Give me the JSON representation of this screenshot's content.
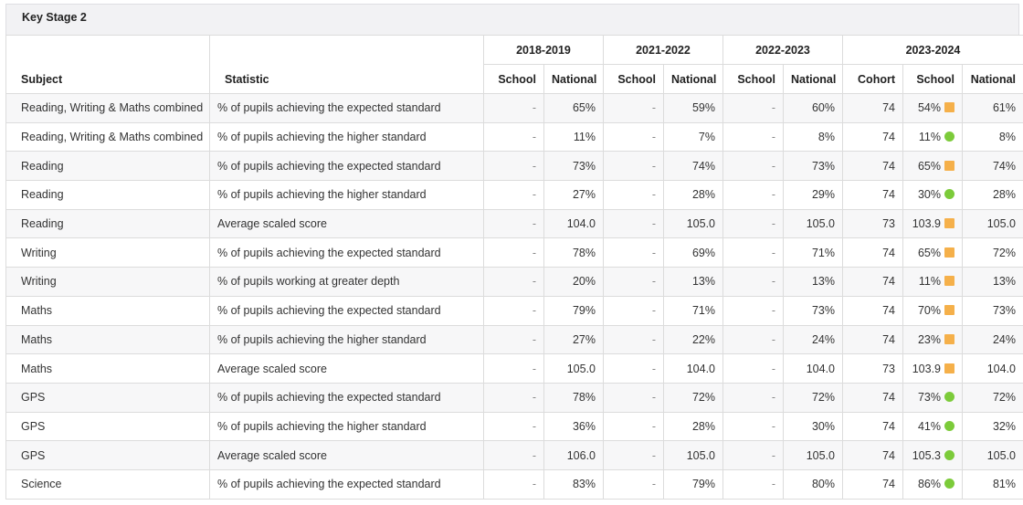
{
  "section": {
    "title": "Key Stage 2"
  },
  "header": {
    "subject": "Subject",
    "statistic": "Statistic",
    "years": [
      "2018-2019",
      "2021-2022",
      "2022-2023",
      "2023-2024"
    ],
    "school": "School",
    "national": "National",
    "cohort": "Cohort"
  },
  "indicator_colors": {
    "square": "#f5b04a",
    "circle": "#7ccb3a"
  },
  "rows": [
    {
      "subject": "Reading, Writing & Maths combined",
      "statistic": "% of pupils achieving the expected standard",
      "s19": "-",
      "n19": "65%",
      "s22": "-",
      "n22": "59%",
      "s23": "-",
      "n23": "60%",
      "cohort": "74",
      "s24": "54%",
      "indicator": "square",
      "n24": "61%"
    },
    {
      "subject": "Reading, Writing & Maths combined",
      "statistic": "% of pupils achieving the higher standard",
      "s19": "-",
      "n19": "11%",
      "s22": "-",
      "n22": "7%",
      "s23": "-",
      "n23": "8%",
      "cohort": "74",
      "s24": "11%",
      "indicator": "circle",
      "n24": "8%"
    },
    {
      "subject": "Reading",
      "statistic": "% of pupils achieving the expected standard",
      "s19": "-",
      "n19": "73%",
      "s22": "-",
      "n22": "74%",
      "s23": "-",
      "n23": "73%",
      "cohort": "74",
      "s24": "65%",
      "indicator": "square",
      "n24": "74%"
    },
    {
      "subject": "Reading",
      "statistic": "% of pupils achieving the higher standard",
      "s19": "-",
      "n19": "27%",
      "s22": "-",
      "n22": "28%",
      "s23": "-",
      "n23": "29%",
      "cohort": "74",
      "s24": "30%",
      "indicator": "circle",
      "n24": "28%"
    },
    {
      "subject": "Reading",
      "statistic": "Average scaled score",
      "s19": "-",
      "n19": "104.0",
      "s22": "-",
      "n22": "105.0",
      "s23": "-",
      "n23": "105.0",
      "cohort": "73",
      "s24": "103.9",
      "indicator": "square",
      "n24": "105.0"
    },
    {
      "subject": "Writing",
      "statistic": "% of pupils achieving the expected standard",
      "s19": "-",
      "n19": "78%",
      "s22": "-",
      "n22": "69%",
      "s23": "-",
      "n23": "71%",
      "cohort": "74",
      "s24": "65%",
      "indicator": "square",
      "n24": "72%"
    },
    {
      "subject": "Writing",
      "statistic": "% of pupils working at greater depth",
      "s19": "-",
      "n19": "20%",
      "s22": "-",
      "n22": "13%",
      "s23": "-",
      "n23": "13%",
      "cohort": "74",
      "s24": "11%",
      "indicator": "square",
      "n24": "13%"
    },
    {
      "subject": "Maths",
      "statistic": "% of pupils achieving the expected standard",
      "s19": "-",
      "n19": "79%",
      "s22": "-",
      "n22": "71%",
      "s23": "-",
      "n23": "73%",
      "cohort": "74",
      "s24": "70%",
      "indicator": "square",
      "n24": "73%"
    },
    {
      "subject": "Maths",
      "statistic": "% of pupils achieving the higher standard",
      "s19": "-",
      "n19": "27%",
      "s22": "-",
      "n22": "22%",
      "s23": "-",
      "n23": "24%",
      "cohort": "74",
      "s24": "23%",
      "indicator": "square",
      "n24": "24%"
    },
    {
      "subject": "Maths",
      "statistic": "Average scaled score",
      "s19": "-",
      "n19": "105.0",
      "s22": "-",
      "n22": "104.0",
      "s23": "-",
      "n23": "104.0",
      "cohort": "73",
      "s24": "103.9",
      "indicator": "square",
      "n24": "104.0"
    },
    {
      "subject": "GPS",
      "statistic": "% of pupils achieving the expected standard",
      "s19": "-",
      "n19": "78%",
      "s22": "-",
      "n22": "72%",
      "s23": "-",
      "n23": "72%",
      "cohort": "74",
      "s24": "73%",
      "indicator": "circle",
      "n24": "72%"
    },
    {
      "subject": "GPS",
      "statistic": "% of pupils achieving the higher standard",
      "s19": "-",
      "n19": "36%",
      "s22": "-",
      "n22": "28%",
      "s23": "-",
      "n23": "30%",
      "cohort": "74",
      "s24": "41%",
      "indicator": "circle",
      "n24": "32%"
    },
    {
      "subject": "GPS",
      "statistic": "Average scaled score",
      "s19": "-",
      "n19": "106.0",
      "s22": "-",
      "n22": "105.0",
      "s23": "-",
      "n23": "105.0",
      "cohort": "74",
      "s24": "105.3",
      "indicator": "circle",
      "n24": "105.0"
    },
    {
      "subject": "Science",
      "statistic": "% of pupils achieving the expected standard",
      "s19": "-",
      "n19": "83%",
      "s22": "-",
      "n22": "79%",
      "s23": "-",
      "n23": "80%",
      "cohort": "74",
      "s24": "86%",
      "indicator": "circle",
      "n24": "81%"
    }
  ]
}
